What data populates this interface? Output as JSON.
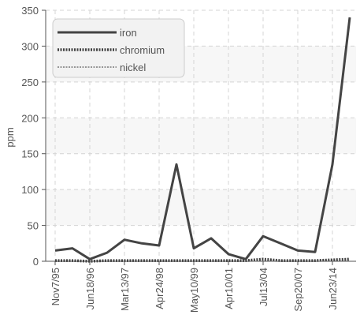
{
  "chart_data": {
    "type": "line",
    "title": "",
    "xlabel": "",
    "ylabel": "ppm",
    "ylim": [
      0,
      350
    ],
    "yticks": [
      0,
      50,
      100,
      150,
      200,
      250,
      300,
      350
    ],
    "grid": true,
    "legend_position": "top-left",
    "x_tick_labels": [
      "Nov7/95",
      "Jun18/96",
      "Mar13/97",
      "Apr24/98",
      "May10/99",
      "Apr10/01",
      "Jul13/04",
      "Sep20/07",
      "Jun23/14"
    ],
    "series": [
      {
        "name": "iron",
        "color": "#444444",
        "style": "solid",
        "values": [
          15,
          18,
          3,
          12,
          30,
          25,
          22,
          135,
          18,
          32,
          10,
          3,
          35,
          25,
          15,
          13,
          135,
          340
        ]
      },
      {
        "name": "chromium",
        "color": "#444444",
        "style": "dense-dash",
        "values": [
          1,
          1,
          0,
          1,
          1,
          1,
          1,
          1,
          1,
          1,
          1,
          1,
          3,
          1,
          1,
          1,
          2,
          3
        ]
      },
      {
        "name": "nickel",
        "color": "#777777",
        "style": "fine-dash",
        "values": [
          0,
          0,
          0,
          0,
          0,
          0,
          0,
          0,
          0,
          0,
          0,
          0,
          1,
          0,
          0,
          0,
          1,
          1
        ]
      }
    ]
  }
}
